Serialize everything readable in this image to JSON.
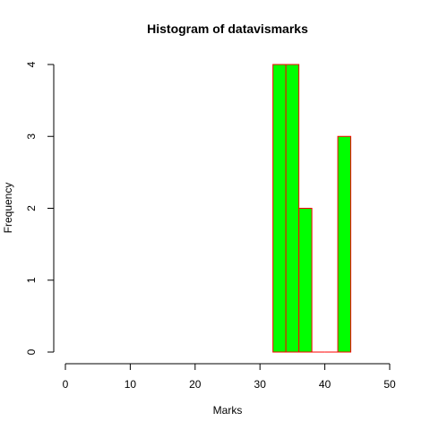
{
  "chart_data": {
    "type": "bar",
    "title": "Histogram of datavismarks",
    "xlabel": "Marks",
    "ylabel": "Frequency",
    "xlim": [
      0,
      50
    ],
    "ylim": [
      0,
      4
    ],
    "x_ticks": [
      "0",
      "10",
      "20",
      "30",
      "40",
      "50"
    ],
    "y_ticks": [
      "0",
      "1",
      "2",
      "3",
      "4"
    ],
    "bins": [
      {
        "from": 32,
        "to": 34,
        "count": 4
      },
      {
        "from": 34,
        "to": 36,
        "count": 4
      },
      {
        "from": 36,
        "to": 38,
        "count": 2
      },
      {
        "from": 38,
        "to": 40,
        "count": 0
      },
      {
        "from": 40,
        "to": 42,
        "count": 0
      },
      {
        "from": 42,
        "to": 44,
        "count": 3
      }
    ],
    "grid": false,
    "bar_fill_color": "#00ff00",
    "bar_border_color": "#ff0000"
  }
}
